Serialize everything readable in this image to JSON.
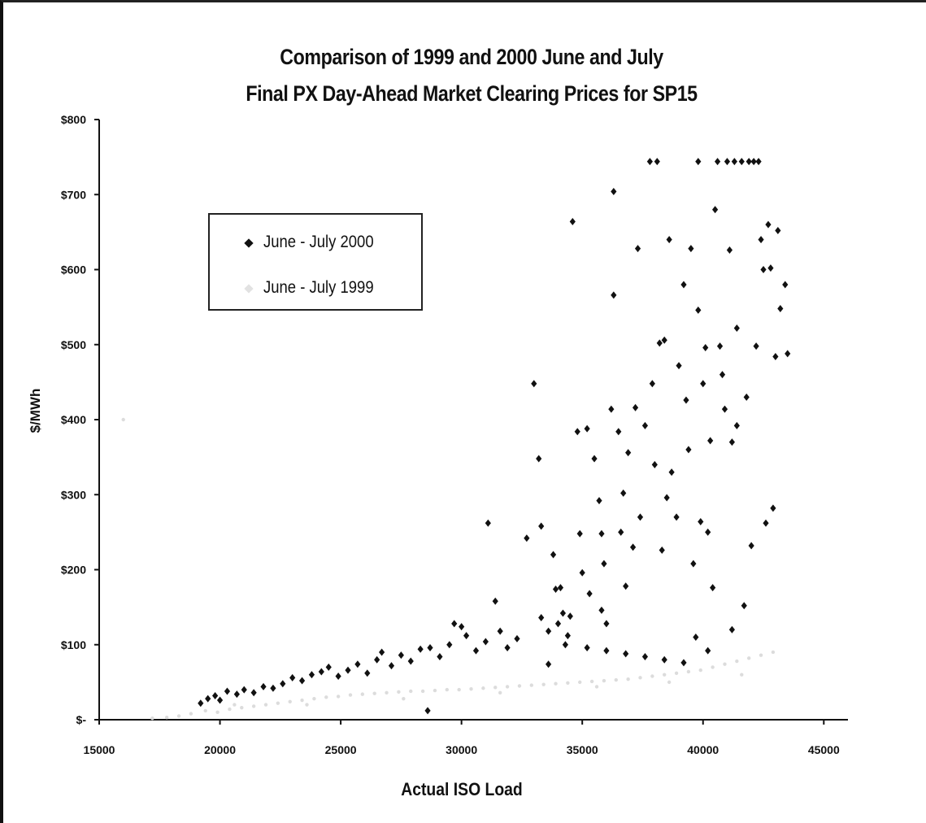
{
  "chart_data": {
    "type": "scatter",
    "title": [
      "Comparison of 1999 and 2000 June and July",
      "Final PX Day-Ahead Market Clearing Prices for SP15"
    ],
    "xlabel": "Actual ISO Load",
    "ylabel": "$/MWh",
    "xlim": [
      15000,
      46000
    ],
    "ylim": [
      0,
      800
    ],
    "x_ticks": [
      15000,
      20000,
      25000,
      30000,
      35000,
      40000,
      45000
    ],
    "x_tick_labels": [
      "15000",
      "20000",
      "25000",
      "30000",
      "35000",
      "40000",
      "45000"
    ],
    "y_ticks": [
      0,
      100,
      200,
      300,
      400,
      500,
      600,
      700,
      800
    ],
    "y_tick_labels": [
      "$-",
      "$100",
      "$200",
      "$300",
      "$400",
      "$500",
      "$600",
      "$700",
      "$800"
    ],
    "grid": false,
    "legend_position": "upper-left",
    "series": [
      {
        "name": "June - July 2000",
        "color": "#111111",
        "marker": "diamond",
        "points": [
          [
            19200,
            22
          ],
          [
            19500,
            28
          ],
          [
            19800,
            32
          ],
          [
            20000,
            26
          ],
          [
            20300,
            38
          ],
          [
            20700,
            34
          ],
          [
            21000,
            40
          ],
          [
            21400,
            36
          ],
          [
            21800,
            44
          ],
          [
            22200,
            42
          ],
          [
            22600,
            48
          ],
          [
            23000,
            56
          ],
          [
            23400,
            52
          ],
          [
            23800,
            60
          ],
          [
            24200,
            64
          ],
          [
            24500,
            70
          ],
          [
            24900,
            58
          ],
          [
            25300,
            66
          ],
          [
            25700,
            74
          ],
          [
            26100,
            62
          ],
          [
            26500,
            80
          ],
          [
            26700,
            90
          ],
          [
            27100,
            72
          ],
          [
            27500,
            86
          ],
          [
            27900,
            78
          ],
          [
            28300,
            94
          ],
          [
            28600,
            12
          ],
          [
            28700,
            96
          ],
          [
            29100,
            84
          ],
          [
            29500,
            100
          ],
          [
            29700,
            128
          ],
          [
            30000,
            124
          ],
          [
            30200,
            112
          ],
          [
            30600,
            92
          ],
          [
            31000,
            104
          ],
          [
            31100,
            262
          ],
          [
            31400,
            158
          ],
          [
            31600,
            118
          ],
          [
            31900,
            96
          ],
          [
            32300,
            108
          ],
          [
            32700,
            242
          ],
          [
            33000,
            448
          ],
          [
            33200,
            348
          ],
          [
            33300,
            258
          ],
          [
            33300,
            136
          ],
          [
            33600,
            118
          ],
          [
            33800,
            220
          ],
          [
            33900,
            174
          ],
          [
            34100,
            176
          ],
          [
            34200,
            142
          ],
          [
            34400,
            112
          ],
          [
            34600,
            664
          ],
          [
            34800,
            384
          ],
          [
            34900,
            248
          ],
          [
            35000,
            196
          ],
          [
            35200,
            388
          ],
          [
            35300,
            168
          ],
          [
            35500,
            348
          ],
          [
            35700,
            292
          ],
          [
            35800,
            248
          ],
          [
            35900,
            208
          ],
          [
            36000,
            128
          ],
          [
            36200,
            414
          ],
          [
            36300,
            704
          ],
          [
            36300,
            566
          ],
          [
            36500,
            384
          ],
          [
            36600,
            250
          ],
          [
            36700,
            302
          ],
          [
            36800,
            178
          ],
          [
            36900,
            356
          ],
          [
            37100,
            230
          ],
          [
            37200,
            416
          ],
          [
            37300,
            628
          ],
          [
            37400,
            270
          ],
          [
            37600,
            392
          ],
          [
            37800,
            744
          ],
          [
            37900,
            448
          ],
          [
            38000,
            340
          ],
          [
            38100,
            744
          ],
          [
            38200,
            502
          ],
          [
            38300,
            226
          ],
          [
            38400,
            506
          ],
          [
            38500,
            296
          ],
          [
            38600,
            640
          ],
          [
            38700,
            330
          ],
          [
            38900,
            270
          ],
          [
            39000,
            472
          ],
          [
            39200,
            580
          ],
          [
            39300,
            426
          ],
          [
            39400,
            360
          ],
          [
            39500,
            628
          ],
          [
            39600,
            208
          ],
          [
            39700,
            110
          ],
          [
            39800,
            744
          ],
          [
            39800,
            546
          ],
          [
            39900,
            264
          ],
          [
            40000,
            448
          ],
          [
            40100,
            496
          ],
          [
            40200,
            250
          ],
          [
            40300,
            372
          ],
          [
            40400,
            176
          ],
          [
            40500,
            680
          ],
          [
            40600,
            744
          ],
          [
            40700,
            498
          ],
          [
            40800,
            460
          ],
          [
            40900,
            414
          ],
          [
            41000,
            744
          ],
          [
            41100,
            626
          ],
          [
            41200,
            370
          ],
          [
            41300,
            744
          ],
          [
            41400,
            522
          ],
          [
            41400,
            392
          ],
          [
            41600,
            744
          ],
          [
            41700,
            152
          ],
          [
            41800,
            430
          ],
          [
            41900,
            744
          ],
          [
            42000,
            232
          ],
          [
            42100,
            744
          ],
          [
            42200,
            498
          ],
          [
            42300,
            744
          ],
          [
            42400,
            640
          ],
          [
            42500,
            600
          ],
          [
            42600,
            262
          ],
          [
            42700,
            660
          ],
          [
            42800,
            602
          ],
          [
            42900,
            282
          ],
          [
            43000,
            484
          ],
          [
            43100,
            652
          ],
          [
            43200,
            548
          ],
          [
            43400,
            580
          ],
          [
            43500,
            488
          ],
          [
            34000,
            128
          ],
          [
            34500,
            138
          ],
          [
            35200,
            96
          ],
          [
            36000,
            92
          ],
          [
            36800,
            88
          ],
          [
            37600,
            84
          ],
          [
            38400,
            80
          ],
          [
            39200,
            76
          ],
          [
            40200,
            92
          ],
          [
            41200,
            120
          ],
          [
            35800,
            146
          ],
          [
            34300,
            100
          ],
          [
            33600,
            74
          ]
        ]
      },
      {
        "name": "June - July 1999",
        "color": "#dcdcdc",
        "marker": "dot",
        "points": [
          [
            17200,
            2
          ],
          [
            17800,
            3
          ],
          [
            18300,
            5
          ],
          [
            18800,
            8
          ],
          [
            19400,
            12
          ],
          [
            19900,
            10
          ],
          [
            20400,
            14
          ],
          [
            20900,
            16
          ],
          [
            21400,
            18
          ],
          [
            21900,
            20
          ],
          [
            22400,
            22
          ],
          [
            22900,
            24
          ],
          [
            23400,
            26
          ],
          [
            23900,
            28
          ],
          [
            24400,
            30
          ],
          [
            24900,
            31
          ],
          [
            25400,
            33
          ],
          [
            25900,
            34
          ],
          [
            26400,
            35
          ],
          [
            26900,
            36
          ],
          [
            27400,
            37
          ],
          [
            27900,
            38
          ],
          [
            28400,
            38
          ],
          [
            28900,
            39
          ],
          [
            29400,
            40
          ],
          [
            29900,
            40
          ],
          [
            30400,
            41
          ],
          [
            30900,
            42
          ],
          [
            31400,
            43
          ],
          [
            31900,
            44
          ],
          [
            32400,
            45
          ],
          [
            32900,
            46
          ],
          [
            33400,
            47
          ],
          [
            33900,
            48
          ],
          [
            34400,
            49
          ],
          [
            34900,
            50
          ],
          [
            35400,
            51
          ],
          [
            35900,
            52
          ],
          [
            36400,
            53
          ],
          [
            36900,
            54
          ],
          [
            37400,
            56
          ],
          [
            37900,
            58
          ],
          [
            38400,
            60
          ],
          [
            38900,
            62
          ],
          [
            39400,
            64
          ],
          [
            39900,
            66
          ],
          [
            40400,
            70
          ],
          [
            40900,
            74
          ],
          [
            41400,
            78
          ],
          [
            41900,
            82
          ],
          [
            42400,
            86
          ],
          [
            42900,
            90
          ],
          [
            16000,
            400
          ],
          [
            20600,
            20
          ],
          [
            23600,
            20
          ],
          [
            27600,
            28
          ],
          [
            31600,
            36
          ],
          [
            35600,
            44
          ],
          [
            38600,
            50
          ],
          [
            41600,
            60
          ]
        ]
      }
    ]
  }
}
